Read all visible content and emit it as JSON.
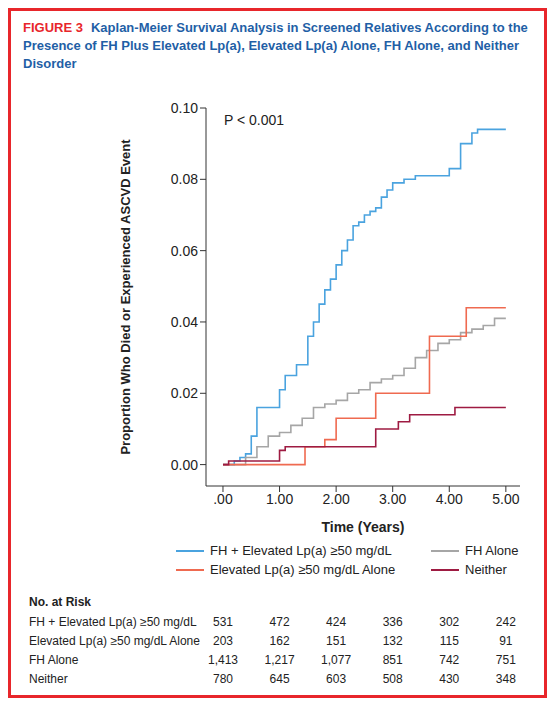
{
  "chart_data": {
    "type": "line",
    "figure_label": "FIGURE 3",
    "title": "Kaplan-Meier Survival Analysis in Screened Relatives According to the Presence of FH Plus Elevated Lp(a), Elevated Lp(a) Alone, FH Alone, and Neither Disorder",
    "x_label": "Time (Years)",
    "y_label": "Proportion Who Died or Experienced ASCVD Event",
    "annotation": "P < 0.001",
    "xlim": [
      -0.3,
      5.25
    ],
    "xticks": [
      {
        "value": 0,
        "label": ".00"
      },
      {
        "value": 1,
        "label": "1.00"
      },
      {
        "value": 2,
        "label": "2.00"
      },
      {
        "value": 3,
        "label": "3.00"
      },
      {
        "value": 4,
        "label": "4.00"
      },
      {
        "value": 5,
        "label": "5.00"
      }
    ],
    "ylim": [
      -0.006,
      0.1
    ],
    "yticks": [
      {
        "value": 0,
        "label": "0.00"
      },
      0.02,
      0.04,
      0.06,
      0.08,
      {
        "value": 0.1,
        "label": "0.10"
      }
    ],
    "grid": false,
    "legend": "bottom",
    "series": [
      {
        "name": "FH + Elevated Lp(a) ≥50 mg/dL",
        "color": "#4aa3df",
        "line_style": "step",
        "x": [
          0,
          0.2,
          0.3,
          0.4,
          0.5,
          0.6,
          0.9,
          1.0,
          1.1,
          1.3,
          1.5,
          1.6,
          1.7,
          1.8,
          1.9,
          2.0,
          2.1,
          2.2,
          2.3,
          2.4,
          2.5,
          2.6,
          2.7,
          2.8,
          2.9,
          3.0,
          3.2,
          3.4,
          3.6,
          3.8,
          4.0,
          4.2,
          4.4,
          4.5,
          5.0
        ],
        "values": [
          0,
          0.001,
          0.002,
          0.003,
          0.008,
          0.016,
          0.016,
          0.021,
          0.025,
          0.028,
          0.036,
          0.04,
          0.045,
          0.049,
          0.052,
          0.056,
          0.06,
          0.063,
          0.067,
          0.068,
          0.07,
          0.071,
          0.072,
          0.075,
          0.077,
          0.079,
          0.08,
          0.081,
          0.081,
          0.081,
          0.083,
          0.09,
          0.093,
          0.094,
          0.094
        ]
      },
      {
        "name": "FH Alone",
        "color": "#a6a6a6",
        "line_style": "step",
        "x": [
          0,
          0.4,
          0.6,
          0.8,
          1.0,
          1.2,
          1.4,
          1.6,
          1.8,
          2.0,
          2.2,
          2.4,
          2.6,
          2.8,
          3.0,
          3.2,
          3.4,
          3.6,
          3.8,
          4.0,
          4.2,
          4.4,
          4.6,
          4.8,
          5.0
        ],
        "values": [
          0,
          0.002,
          0.005,
          0.008,
          0.009,
          0.011,
          0.013,
          0.016,
          0.017,
          0.018,
          0.02,
          0.021,
          0.023,
          0.024,
          0.025,
          0.027,
          0.03,
          0.032,
          0.034,
          0.035,
          0.037,
          0.038,
          0.039,
          0.041,
          0.041
        ]
      },
      {
        "name": "Elevated Lp(a) ≥50 mg/dL Alone",
        "color": "#ef6a50",
        "line_style": "step",
        "x": [
          0,
          1.45,
          1.8,
          2.0,
          2.7,
          3.65,
          4.3,
          5.0
        ],
        "values": [
          0,
          0.005,
          0.007,
          0.013,
          0.02,
          0.036,
          0.044,
          0.044
        ]
      },
      {
        "name": "Neither",
        "color": "#9e1b42",
        "line_style": "step",
        "x": [
          0,
          0.1,
          1.0,
          1.1,
          2.6,
          2.7,
          3.1,
          3.3,
          3.9,
          4.1,
          5.0
        ],
        "values": [
          0,
          0.001,
          0.004,
          0.005,
          0.005,
          0.01,
          0.012,
          0.014,
          0.014,
          0.016,
          0.016
        ]
      }
    ],
    "risk_table": {
      "title": "No. at Risk",
      "rows": [
        {
          "name": "FH + Elevated Lp(a) ≥50 mg/dL",
          "values": [
            "531",
            "472",
            "424",
            "336",
            "302",
            "242"
          ]
        },
        {
          "name": "Elevated Lp(a) ≥50 mg/dL Alone",
          "values": [
            "203",
            "162",
            "151",
            "132",
            "115",
            "91"
          ]
        },
        {
          "name": "FH Alone",
          "values": [
            "1,413",
            "1,217",
            "1,077",
            "851",
            "742",
            "751"
          ]
        },
        {
          "name": "Neither",
          "values": [
            "780",
            "645",
            "603",
            "508",
            "430",
            "348"
          ]
        }
      ]
    }
  }
}
